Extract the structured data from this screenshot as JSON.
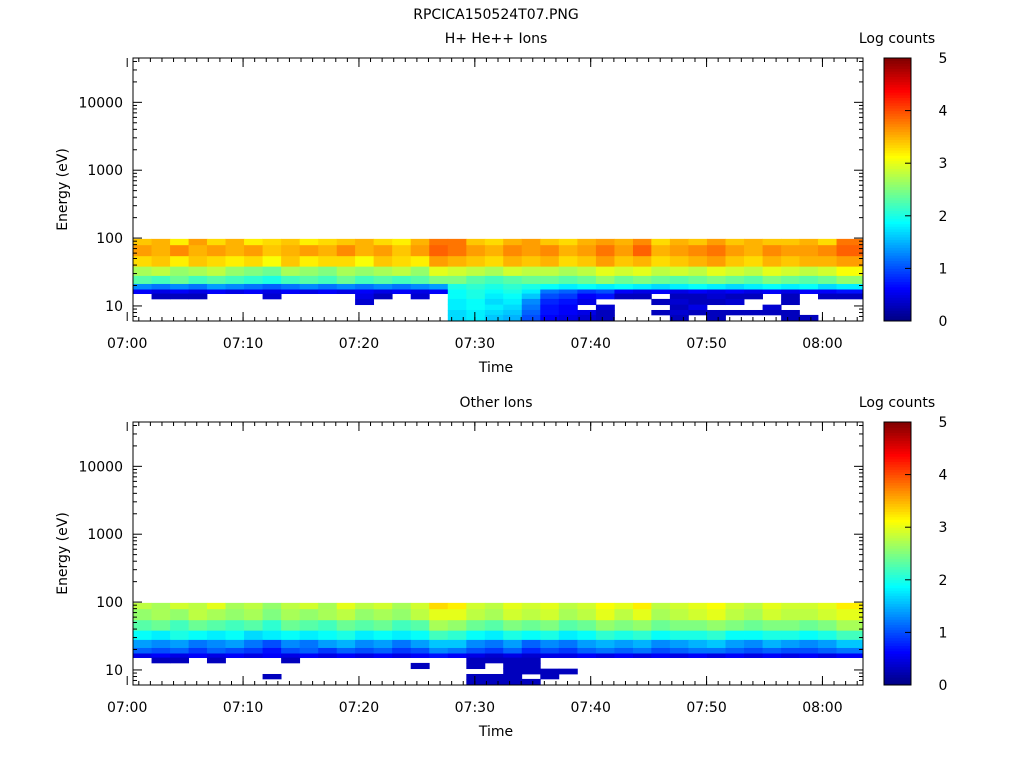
{
  "figure": {
    "title": "RPCICA150524T07.PNG"
  },
  "chart_data": [
    {
      "type": "heatmap",
      "title": "H+ He++ Ions",
      "xlabel": "Time",
      "ylabel": "Energy (eV)",
      "x_range": [
        "07:00:30",
        "08:03:30"
      ],
      "x_ticks": [
        "07:00",
        "07:10",
        "07:20",
        "07:30",
        "07:40",
        "07:50",
        "08:00"
      ],
      "y_scale": "log",
      "y_range": [
        6,
        45000
      ],
      "y_ticks": [
        "10",
        "100",
        "1000",
        "10000"
      ],
      "colorbar": {
        "label": "Log counts",
        "range": [
          0,
          5
        ],
        "ticks": [
          "0",
          "1",
          "2",
          "3",
          "4",
          "5"
        ],
        "colormap": "jet"
      },
      "time_bins": [
        "07:00:30",
        "07:02:06",
        "07:03:42",
        "07:05:18",
        "07:06:53",
        "07:08:29",
        "07:10:05",
        "07:11:41",
        "07:13:17",
        "07:14:53",
        "07:16:29",
        "07:18:05",
        "07:19:40",
        "07:21:16",
        "07:22:52",
        "07:24:28",
        "07:26:04",
        "07:27:40",
        "07:29:16",
        "07:30:52",
        "07:32:27",
        "07:34:03",
        "07:35:39",
        "07:37:15",
        "07:38:51",
        "07:40:27",
        "07:42:03",
        "07:43:39",
        "07:45:14",
        "07:46:50",
        "07:48:26",
        "07:50:02",
        "07:51:38",
        "07:53:14",
        "07:54:50",
        "07:56:26",
        "07:58:01",
        "07:59:37",
        "08:01:13"
      ],
      "energy_bins_eV": [
        95,
        65,
        45,
        32,
        24,
        18.5,
        16.5,
        14,
        11.5,
        9.5,
        8,
        6.8
      ],
      "log_counts": [
        [
          3.4,
          3.5,
          3.2,
          3.6,
          3.3,
          3.5,
          3.2,
          3.3,
          3.4,
          3.2,
          3.3,
          3.4,
          3.5,
          3.3,
          3.2,
          3.5,
          3.8,
          3.8,
          3.4,
          3.3,
          3.5,
          3.6,
          3.4,
          3.3,
          3.5,
          3.6,
          3.5,
          3.7,
          3.3,
          3.5,
          3.4,
          3.6,
          3.4,
          3.5,
          3.4,
          3.4,
          3.5,
          3.3,
          3.8
        ],
        [
          3.6,
          3.5,
          3.7,
          3.5,
          3.6,
          3.5,
          3.6,
          3.4,
          3.5,
          3.6,
          3.5,
          3.7,
          3.5,
          3.6,
          3.4,
          3.6,
          3.9,
          3.8,
          3.6,
          3.5,
          3.7,
          3.6,
          3.7,
          3.5,
          3.6,
          3.8,
          3.6,
          3.9,
          3.5,
          3.6,
          3.7,
          3.8,
          3.6,
          3.5,
          3.7,
          3.6,
          3.6,
          3.7,
          3.9
        ],
        [
          3.3,
          3.4,
          3.2,
          3.4,
          3.3,
          3.2,
          3.3,
          3.1,
          3.4,
          3.2,
          3.3,
          3.3,
          3.1,
          3.4,
          3.3,
          3.2,
          3.6,
          3.5,
          3.4,
          3.3,
          3.5,
          3.4,
          3.5,
          3.3,
          3.4,
          3.6,
          3.4,
          3.5,
          3.3,
          3.4,
          3.5,
          3.6,
          3.4,
          3.3,
          3.5,
          3.4,
          3.5,
          3.5,
          3.6
        ],
        [
          2.7,
          2.8,
          2.6,
          2.7,
          2.8,
          2.6,
          2.5,
          2.4,
          2.7,
          2.6,
          2.5,
          2.7,
          2.6,
          2.7,
          2.8,
          2.6,
          3.0,
          2.9,
          2.8,
          2.7,
          2.9,
          2.8,
          2.8,
          2.7,
          2.8,
          3.0,
          2.9,
          3.0,
          2.8,
          2.9,
          2.8,
          3.0,
          2.9,
          2.8,
          3.0,
          2.9,
          2.8,
          2.9,
          3.1
        ],
        [
          2.3,
          2.2,
          2.4,
          2.2,
          2.3,
          2.2,
          2.1,
          2.0,
          2.2,
          2.3,
          2.2,
          2.4,
          2.2,
          2.3,
          2.2,
          2.3,
          2.5,
          2.5,
          2.3,
          2.2,
          2.3,
          2.4,
          2.4,
          2.3,
          2.4,
          2.6,
          2.4,
          2.5,
          2.4,
          2.3,
          2.4,
          2.5,
          2.4,
          2.3,
          2.5,
          2.4,
          2.3,
          2.4,
          2.6
        ],
        [
          1.3,
          1.2,
          1.3,
          1.2,
          1.4,
          1.3,
          1.2,
          1.1,
          1.2,
          1.3,
          1.2,
          1.3,
          1.2,
          1.3,
          1.2,
          1.3,
          1.4,
          2.0,
          2.1,
          2.0,
          2.1,
          2.0,
          1.9,
          1.8,
          1.9,
          1.8,
          1.9,
          1.8,
          1.7,
          1.8,
          1.9,
          1.8,
          1.7,
          1.8,
          1.9,
          1.8,
          1.9,
          1.7,
          1.8
        ],
        [
          0.6,
          0.5,
          0.6,
          0.5,
          0.6,
          0.5,
          0.6,
          0.5,
          0.6,
          0.5,
          0.6,
          0.5,
          0.6,
          0.5,
          0.6,
          0.5,
          0.6,
          1.9,
          2.0,
          1.9,
          2.0,
          1.8,
          1.2,
          1.1,
          0.9,
          1.0,
          0.6,
          0.5,
          0.6,
          0.5,
          0.6,
          0.5,
          0.6,
          0.5,
          0.6,
          0.5,
          0.6,
          0.6,
          0.7
        ],
        [
          null,
          0.3,
          0.3,
          0.3,
          null,
          null,
          null,
          0.4,
          null,
          null,
          null,
          null,
          0.5,
          0.3,
          null,
          0.4,
          null,
          1.9,
          2.0,
          1.8,
          1.9,
          1.6,
          1.0,
          0.9,
          0.6,
          0.7,
          0.3,
          0.3,
          null,
          0.3,
          0.3,
          0.4,
          0.3,
          0.3,
          null,
          0.3,
          null,
          0.3,
          0.3
        ],
        [
          null,
          null,
          null,
          null,
          null,
          null,
          null,
          null,
          null,
          null,
          null,
          null,
          0.4,
          null,
          null,
          null,
          null,
          1.8,
          1.9,
          1.7,
          1.8,
          1.3,
          0.8,
          0.7,
          0.5,
          null,
          null,
          null,
          0.3,
          0.4,
          0.3,
          0.3,
          0.4,
          null,
          null,
          0.3,
          null,
          null,
          null
        ],
        [
          null,
          null,
          null,
          null,
          null,
          null,
          null,
          null,
          null,
          null,
          null,
          null,
          null,
          null,
          null,
          null,
          null,
          1.8,
          1.9,
          1.8,
          1.7,
          1.2,
          0.7,
          0.6,
          null,
          0.4,
          null,
          null,
          null,
          0.3,
          0.5,
          null,
          null,
          null,
          0.4,
          null,
          null,
          null,
          null
        ],
        [
          null,
          null,
          null,
          null,
          null,
          null,
          null,
          null,
          null,
          null,
          null,
          null,
          null,
          null,
          null,
          null,
          null,
          1.7,
          1.8,
          1.7,
          1.6,
          1.1,
          0.7,
          0.6,
          0.5,
          0.3,
          null,
          null,
          0.3,
          0.4,
          0.3,
          0.3,
          0.3,
          0.3,
          0.3,
          0.3,
          null,
          null,
          null
        ],
        [
          null,
          null,
          null,
          null,
          null,
          null,
          null,
          null,
          null,
          null,
          null,
          null,
          null,
          null,
          null,
          null,
          null,
          1.7,
          1.8,
          1.6,
          1.5,
          1.0,
          0.6,
          0.5,
          0.4,
          0.3,
          null,
          null,
          null,
          0.3,
          null,
          0.3,
          null,
          null,
          null,
          0.3,
          0.3,
          null,
          null
        ]
      ]
    },
    {
      "type": "heatmap",
      "title": "Other Ions",
      "xlabel": "Time",
      "ylabel": "Energy (eV)",
      "x_range": [
        "07:00:30",
        "08:03:30"
      ],
      "x_ticks": [
        "07:00",
        "07:10",
        "07:20",
        "07:30",
        "07:40",
        "07:50",
        "08:00"
      ],
      "y_scale": "log",
      "y_range": [
        6,
        45000
      ],
      "y_ticks": [
        "10",
        "100",
        "1000",
        "10000"
      ],
      "colorbar": {
        "label": "Log counts",
        "range": [
          0,
          5
        ],
        "ticks": [
          "0",
          "1",
          "2",
          "3",
          "4",
          "5"
        ],
        "colormap": "jet"
      },
      "time_bins": [
        "07:00:30",
        "07:02:06",
        "07:03:42",
        "07:05:18",
        "07:06:53",
        "07:08:29",
        "07:10:05",
        "07:11:41",
        "07:13:17",
        "07:14:53",
        "07:16:29",
        "07:18:05",
        "07:19:40",
        "07:21:16",
        "07:22:52",
        "07:24:28",
        "07:26:04",
        "07:27:40",
        "07:29:16",
        "07:30:52",
        "07:32:27",
        "07:34:03",
        "07:35:39",
        "07:37:15",
        "07:38:51",
        "07:40:27",
        "07:42:03",
        "07:43:39",
        "07:45:14",
        "07:46:50",
        "07:48:26",
        "07:50:02",
        "07:51:38",
        "07:53:14",
        "07:54:50",
        "07:56:26",
        "07:58:01",
        "07:59:37",
        "08:01:13"
      ],
      "energy_bins_eV": [
        95,
        65,
        45,
        32,
        24,
        18.5,
        16.5,
        14,
        11.5,
        9.5,
        8,
        6.8
      ],
      "log_counts": [
        [
          2.8,
          2.7,
          2.9,
          2.8,
          3.0,
          2.7,
          2.8,
          2.6,
          2.8,
          2.9,
          2.7,
          3.0,
          2.8,
          2.9,
          2.7,
          2.9,
          3.3,
          3.2,
          2.9,
          2.8,
          3.0,
          2.9,
          3.0,
          2.8,
          2.9,
          3.1,
          3.0,
          3.2,
          2.8,
          2.9,
          3.0,
          3.1,
          2.9,
          2.8,
          3.0,
          2.9,
          2.9,
          3.0,
          3.2
        ],
        [
          2.6,
          2.7,
          2.6,
          2.8,
          2.7,
          2.6,
          2.7,
          2.5,
          2.7,
          2.6,
          2.7,
          2.8,
          2.6,
          2.7,
          2.6,
          2.8,
          3.0,
          3.0,
          2.8,
          2.7,
          2.9,
          2.8,
          2.9,
          2.7,
          2.8,
          3.0,
          2.8,
          3.0,
          2.7,
          2.8,
          2.9,
          3.0,
          2.8,
          2.7,
          2.9,
          2.8,
          2.8,
          2.9,
          3.0
        ],
        [
          2.3,
          2.4,
          2.2,
          2.4,
          2.3,
          2.2,
          2.3,
          2.1,
          2.4,
          2.3,
          2.2,
          2.4,
          2.3,
          2.4,
          2.2,
          2.3,
          2.7,
          2.6,
          2.4,
          2.3,
          2.5,
          2.4,
          2.5,
          2.3,
          2.4,
          2.6,
          2.5,
          2.6,
          2.4,
          2.5,
          2.5,
          2.6,
          2.5,
          2.4,
          2.5,
          2.5,
          2.4,
          2.5,
          2.7
        ],
        [
          1.9,
          1.8,
          2.0,
          1.9,
          1.8,
          1.9,
          1.7,
          1.8,
          1.9,
          1.8,
          1.9,
          2.0,
          1.8,
          1.9,
          1.8,
          1.9,
          2.2,
          2.1,
          1.9,
          1.8,
          2.0,
          1.9,
          2.0,
          1.8,
          1.9,
          2.1,
          2.0,
          2.1,
          1.9,
          2.0,
          2.0,
          2.1,
          1.9,
          1.9,
          2.0,
          2.0,
          1.9,
          2.0,
          2.2
        ],
        [
          1.4,
          1.3,
          1.4,
          1.2,
          1.3,
          1.4,
          1.2,
          1.0,
          1.3,
          1.2,
          1.4,
          1.5,
          1.3,
          1.4,
          1.2,
          1.4,
          1.6,
          1.6,
          1.3,
          1.2,
          1.4,
          1.1,
          1.3,
          1.2,
          1.4,
          1.5,
          1.4,
          1.5,
          1.3,
          1.4,
          1.5,
          1.6,
          1.4,
          1.3,
          1.5,
          1.4,
          1.3,
          1.4,
          1.6
        ],
        [
          1.1,
          1.0,
          1.1,
          0.9,
          1.1,
          1.0,
          0.9,
          0.7,
          1.0,
          1.1,
          0.9,
          1.1,
          1.0,
          1.1,
          0.9,
          1.0,
          1.3,
          1.2,
          1.0,
          0.9,
          1.1,
          0.8,
          1.0,
          0.9,
          1.1,
          1.2,
          1.1,
          1.2,
          1.0,
          1.1,
          1.2,
          1.2,
          1.1,
          1.0,
          1.1,
          1.0,
          1.0,
          1.1,
          1.2
        ],
        [
          0.5,
          0.6,
          0.5,
          0.6,
          0.5,
          0.6,
          0.5,
          0.6,
          0.5,
          0.6,
          0.5,
          0.6,
          0.5,
          0.6,
          0.5,
          0.6,
          0.7,
          0.6,
          0.5,
          0.4,
          0.5,
          0.4,
          0.5,
          0.5,
          0.6,
          0.5,
          0.6,
          0.5,
          0.6,
          0.5,
          0.6,
          0.5,
          0.6,
          0.5,
          0.6,
          0.5,
          0.6,
          0.5,
          0.6
        ],
        [
          null,
          0.3,
          0.3,
          null,
          0.3,
          null,
          null,
          null,
          0.3,
          null,
          null,
          null,
          null,
          null,
          null,
          null,
          null,
          null,
          0.3,
          0.3,
          0.3,
          0.3,
          null,
          null,
          null,
          null,
          null,
          null,
          null,
          null,
          null,
          null,
          null,
          null,
          null,
          null,
          null,
          null,
          null
        ],
        [
          null,
          null,
          null,
          null,
          null,
          null,
          null,
          null,
          null,
          null,
          null,
          null,
          null,
          null,
          null,
          0.3,
          null,
          null,
          0.3,
          null,
          0.3,
          0.3,
          null,
          null,
          null,
          null,
          null,
          null,
          null,
          null,
          null,
          null,
          null,
          null,
          null,
          null,
          null,
          null,
          null
        ],
        [
          null,
          null,
          null,
          null,
          null,
          null,
          null,
          null,
          null,
          null,
          null,
          null,
          null,
          null,
          null,
          null,
          null,
          null,
          null,
          null,
          0.3,
          0.3,
          0.3,
          0.3,
          null,
          null,
          null,
          null,
          null,
          null,
          null,
          null,
          null,
          null,
          null,
          null,
          null,
          null,
          null
        ],
        [
          null,
          null,
          null,
          null,
          null,
          null,
          null,
          0.3,
          null,
          null,
          null,
          null,
          null,
          null,
          null,
          null,
          null,
          null,
          0.3,
          0.3,
          0.3,
          null,
          0.3,
          null,
          null,
          null,
          null,
          null,
          null,
          null,
          null,
          null,
          null,
          null,
          null,
          null,
          null,
          null,
          null
        ],
        [
          null,
          null,
          null,
          null,
          null,
          null,
          null,
          null,
          null,
          null,
          null,
          null,
          null,
          null,
          null,
          null,
          null,
          null,
          0.3,
          0.3,
          0.3,
          0.3,
          null,
          null,
          null,
          null,
          null,
          null,
          null,
          null,
          null,
          null,
          null,
          null,
          null,
          null,
          null,
          null,
          null
        ]
      ]
    }
  ]
}
